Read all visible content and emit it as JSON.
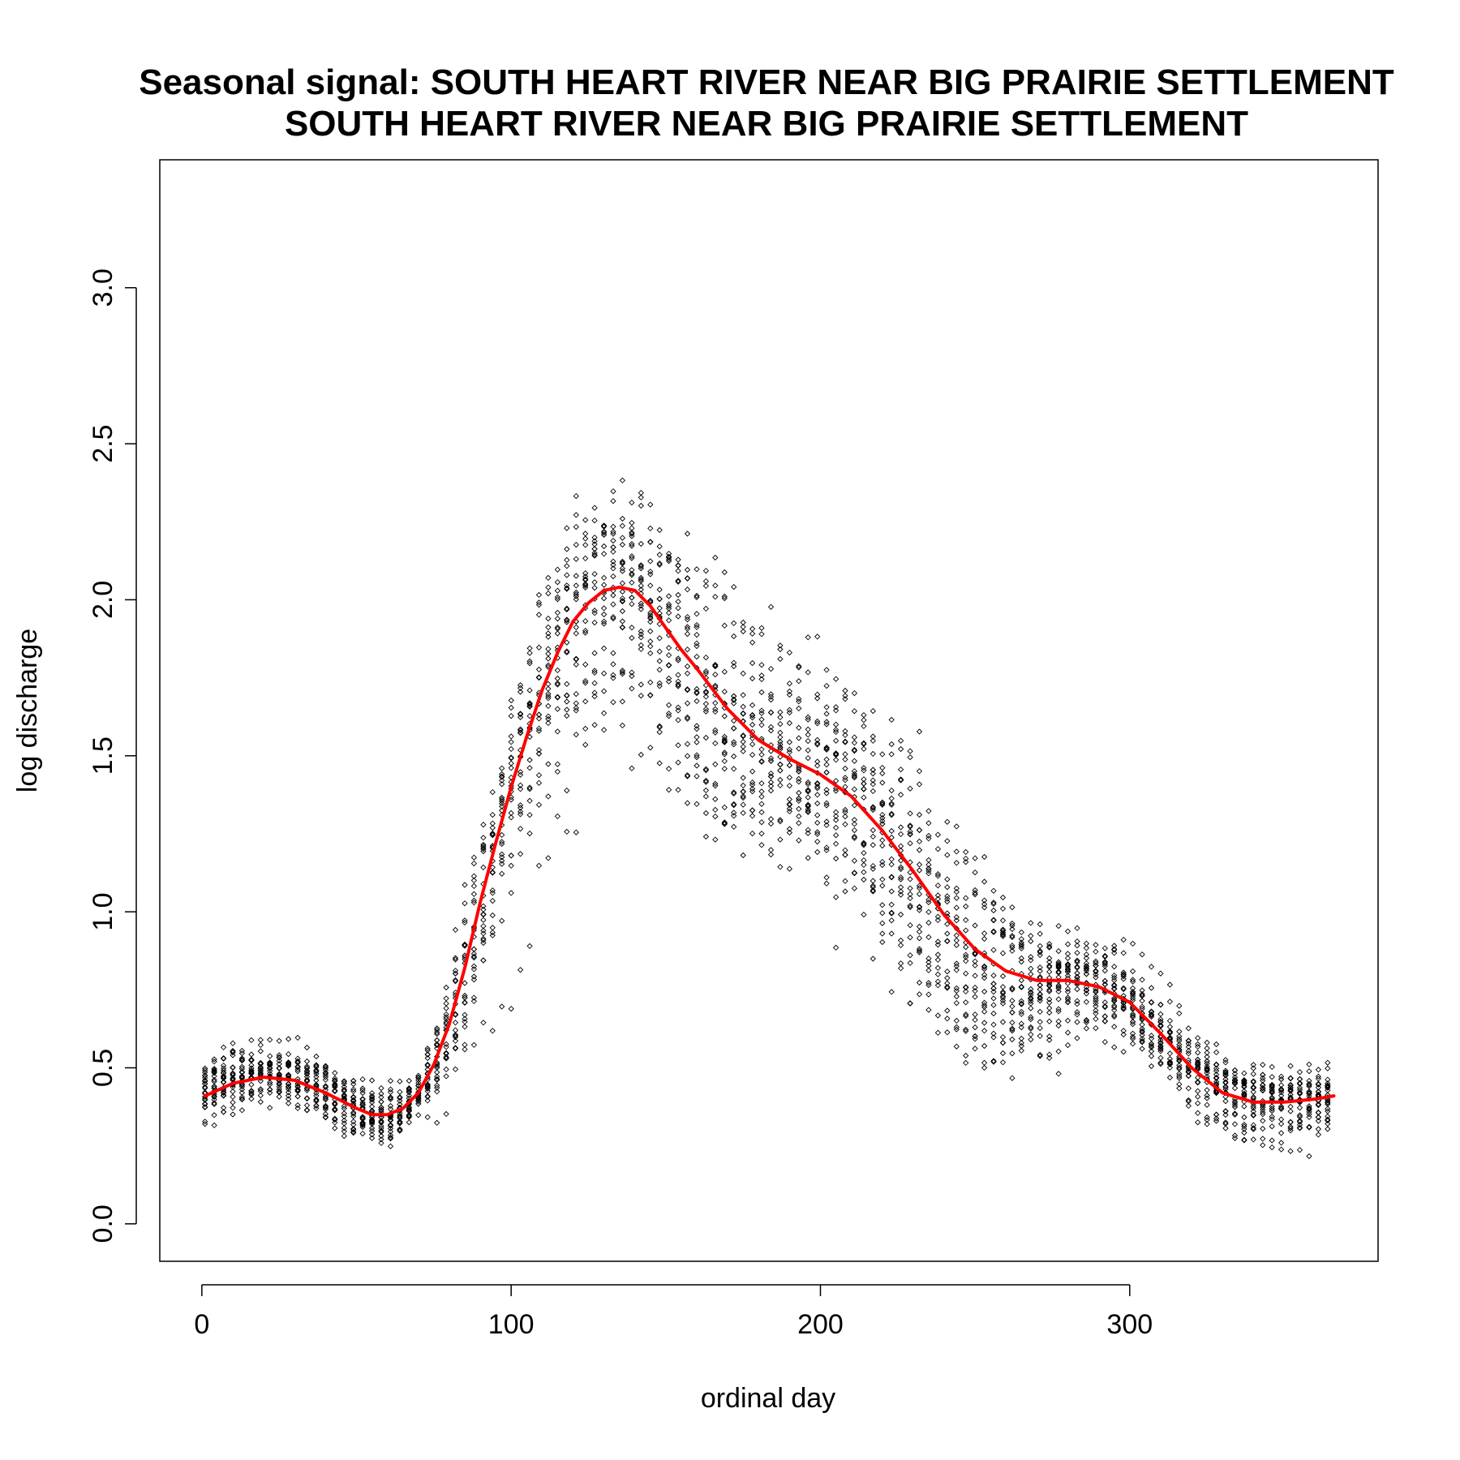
{
  "chart_data": {
    "type": "scatter",
    "title": "Seasonal signal: SOUTH HEART RIVER NEAR BIG PRAIRIE SETTLEMENT",
    "subtitle": "SOUTH HEART RIVER NEAR BIG PRAIRIE SETTLEMENT",
    "xlabel": "ordinal day",
    "ylabel": "log discharge",
    "xlim": [
      -13.6,
      380.3
    ],
    "ylim": [
      -0.12,
      3.41
    ],
    "xticks": [
      0,
      100,
      200,
      300
    ],
    "yticks": [
      0.0,
      0.5,
      1.0,
      1.5,
      2.0,
      2.5,
      3.0
    ],
    "xtick_labels": [
      "0",
      "100",
      "200",
      "300"
    ],
    "ytick_labels": [
      "0.0",
      "0.5",
      "1.0",
      "1.5",
      "2.0",
      "2.5",
      "3.0"
    ],
    "grid": false,
    "colors": {
      "points": "#000000",
      "smooth": "#ff0000"
    },
    "series": [
      {
        "type": "scatter",
        "marker": "open-diamond",
        "color": "#000000",
        "note": "daily log discharge observations (multiple years overlaid)"
      },
      {
        "type": "line",
        "color": "#ff0000",
        "x": [
          1,
          10,
          20,
          30,
          40,
          50,
          55,
          60,
          65,
          70,
          75,
          80,
          85,
          90,
          95,
          100,
          105,
          110,
          115,
          120,
          125,
          130,
          135,
          140,
          145,
          150,
          155,
          160,
          170,
          180,
          190,
          200,
          210,
          220,
          230,
          240,
          250,
          260,
          270,
          280,
          290,
          300,
          310,
          320,
          330,
          340,
          350,
          360,
          366
        ],
        "y": [
          0.41,
          0.45,
          0.47,
          0.46,
          0.42,
          0.37,
          0.35,
          0.35,
          0.37,
          0.42,
          0.51,
          0.64,
          0.82,
          1.03,
          1.22,
          1.4,
          1.56,
          1.71,
          1.83,
          1.93,
          1.99,
          2.03,
          2.04,
          2.03,
          1.98,
          1.91,
          1.84,
          1.78,
          1.65,
          1.55,
          1.49,
          1.44,
          1.37,
          1.26,
          1.13,
          0.99,
          0.88,
          0.81,
          0.78,
          0.78,
          0.76,
          0.71,
          0.61,
          0.5,
          0.42,
          0.39,
          0.39,
          0.4,
          0.41
        ]
      }
    ]
  }
}
